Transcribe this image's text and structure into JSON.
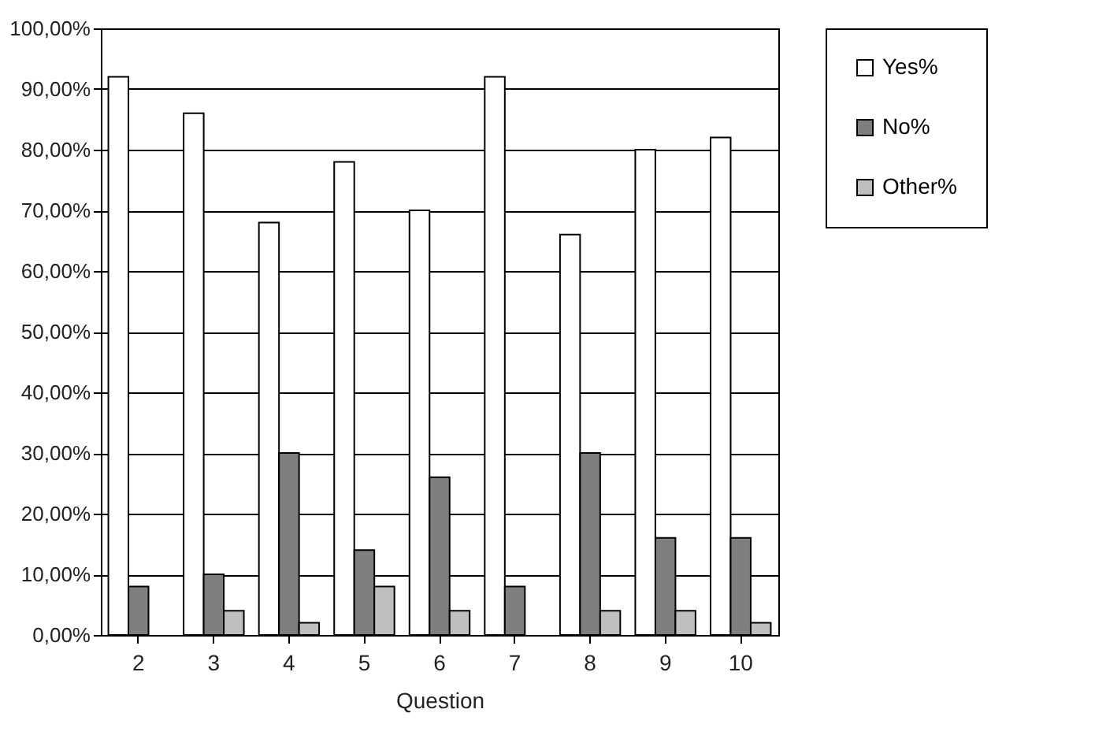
{
  "chart_data": {
    "type": "bar",
    "xlabel": "Question",
    "categories": [
      "2",
      "3",
      "4",
      "5",
      "6",
      "7",
      "8",
      "9",
      "10"
    ],
    "series": [
      {
        "name": "Yes%",
        "color": "#ffffff",
        "values": [
          92,
          86,
          68,
          78,
          70,
          92,
          66,
          80,
          82
        ]
      },
      {
        "name": "No%",
        "color": "#7f7f7f",
        "values": [
          8,
          10,
          30,
          14,
          26,
          8,
          30,
          16,
          16
        ]
      },
      {
        "name": "Other%",
        "color": "#bfbfbf",
        "values": [
          0,
          4,
          2,
          8,
          4,
          0,
          4,
          4,
          2
        ]
      }
    ],
    "ylim": [
      0,
      100
    ],
    "yticks": [
      {
        "value": 0,
        "label": "0,00%"
      },
      {
        "value": 10,
        "label": "10,00%"
      },
      {
        "value": 20,
        "label": "20,00%"
      },
      {
        "value": 30,
        "label": "30,00%"
      },
      {
        "value": 40,
        "label": "40,00%"
      },
      {
        "value": 50,
        "label": "50,00%"
      },
      {
        "value": 60,
        "label": "60,00%"
      },
      {
        "value": 70,
        "label": "70,00%"
      },
      {
        "value": 80,
        "label": "80,00%"
      },
      {
        "value": 90,
        "label": "90,00%"
      },
      {
        "value": 100,
        "label": "100,00%"
      }
    ],
    "grid": "y",
    "legend": "right"
  }
}
